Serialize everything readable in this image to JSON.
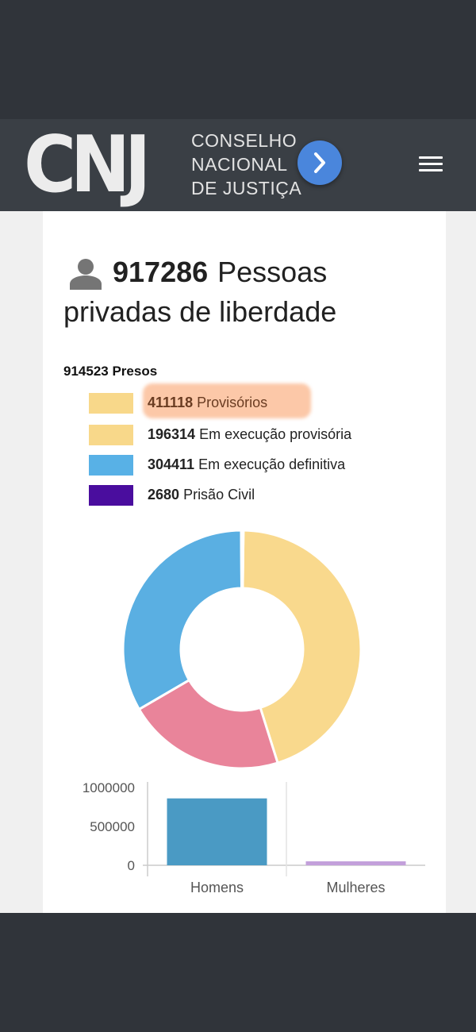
{
  "header": {
    "logo": "CNJ",
    "logo_sub": [
      "CONSELHO",
      "NACIONAL",
      "DE JUSTIÇA"
    ]
  },
  "summary": {
    "total": "917286",
    "label": "Pessoas privadas de liberdade"
  },
  "presos": {
    "label": "914523 Presos"
  },
  "legend": [
    {
      "value": "411118",
      "label": "Provisórios",
      "color": "#f8d88a",
      "highlighted": true
    },
    {
      "value": "196314",
      "label": "Em execução provisória",
      "color": "#f8d88a"
    },
    {
      "value": "304411",
      "label": "Em execução definitiva",
      "color": "#58b1e6"
    },
    {
      "value": "2680",
      "label": "Prisão Civil",
      "color": "#4a0d9e"
    }
  ],
  "chart_data": [
    {
      "type": "pie",
      "hole": true,
      "slices": [
        {
          "value": 411118,
          "color": "#f9d98d"
        },
        {
          "value": 196314,
          "color": "#e9849a"
        },
        {
          "value": 304411,
          "color": "#5aafe2"
        },
        {
          "value": 2680,
          "color": "#4a0d9e"
        }
      ]
    },
    {
      "type": "bar",
      "categories": [
        "Homens",
        "Mulheres"
      ],
      "values": [
        860000,
        45000
      ],
      "colors": [
        "#4a9ac4",
        "#c3a0db"
      ],
      "yticks": [
        "1000000",
        "500000",
        "0"
      ],
      "ylim": [
        0,
        1000000
      ]
    }
  ]
}
